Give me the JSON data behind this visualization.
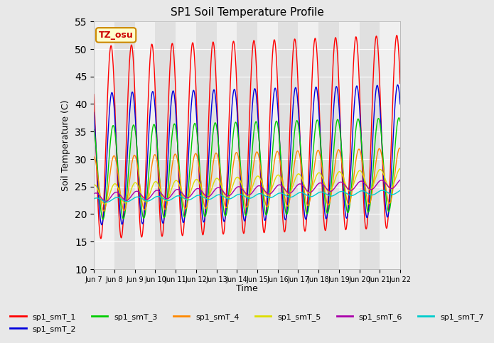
{
  "title": "SP1 Soil Temperature Profile",
  "xlabel": "Time",
  "ylabel": "Soil Temperature (C)",
  "ylim": [
    10,
    55
  ],
  "yticks": [
    10,
    15,
    20,
    25,
    30,
    35,
    40,
    45,
    50,
    55
  ],
  "start_day": 7,
  "end_day": 22,
  "total_days": 15,
  "tz_label": "TZ_osu",
  "sensor_colors": [
    "#ff0000",
    "#0000dd",
    "#00cc00",
    "#ff8800",
    "#dddd00",
    "#aa00aa",
    "#00cccc"
  ],
  "sensor_labels": [
    "sp1_smT_1",
    "sp1_smT_2",
    "sp1_smT_3",
    "sp1_smT_4",
    "sp1_smT_5",
    "sp1_smT_6",
    "sp1_smT_7"
  ],
  "sensor_amplitudes": [
    17.5,
    12.0,
    8.5,
    5.0,
    1.8,
    0.8,
    0.4
  ],
  "sensor_means_start": [
    33.0,
    30.0,
    27.5,
    25.5,
    23.5,
    23.0,
    22.5
  ],
  "sensor_means_end": [
    35.0,
    31.5,
    29.0,
    27.0,
    26.5,
    25.5,
    24.0
  ],
  "sensor_peak_hour": [
    14.0,
    15.0,
    16.5,
    17.5,
    18.5,
    20.0,
    21.0
  ],
  "samples_per_day": 96,
  "band_colors": [
    "#f0f0f0",
    "#e0e0e0"
  ],
  "grid_color": "#ffffff",
  "bg_color": "#e8e8e8"
}
